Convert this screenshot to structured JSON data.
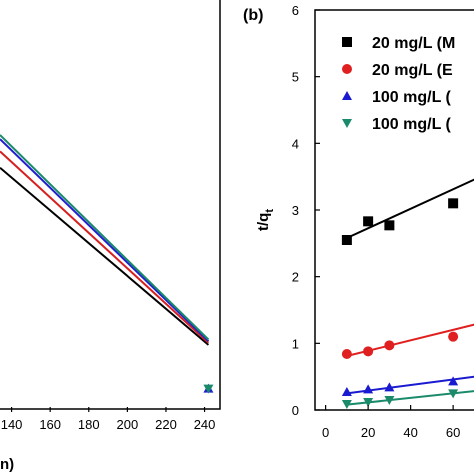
{
  "chart_data": [
    {
      "type": "line",
      "title": "",
      "xlabel": "n)",
      "ylabel": "",
      "xlim": [
        134,
        248
      ],
      "ylim": [
        0,
        1
      ],
      "xticks": [
        140,
        160,
        180,
        200,
        220,
        240
      ],
      "xtick_labels": [
        "140",
        "160",
        "180",
        "200",
        "220",
        "240"
      ],
      "grid": false,
      "series": [
        {
          "color": "#000000",
          "x": [
            134,
            242
          ],
          "y": [
            0.585,
            0.152
          ]
        },
        {
          "color": "#d62020",
          "x": [
            134,
            242
          ],
          "y": [
            0.625,
            0.157
          ]
        },
        {
          "color": "#2020d0",
          "x": [
            134,
            242
          ],
          "y": [
            0.655,
            0.161
          ]
        },
        {
          "color": "#1a8a6a",
          "x": [
            134,
            242
          ],
          "y": [
            0.665,
            0.165
          ]
        }
      ],
      "points": [
        {
          "color": "#2020d0",
          "marker": "triangle-up",
          "x": 242,
          "y": 0.045
        },
        {
          "color": "#1a8a6a",
          "marker": "triangle-down",
          "x": 242,
          "y": 0.045
        }
      ]
    },
    {
      "type": "scatter",
      "panel_label": "(b)",
      "title": "",
      "xlabel": "",
      "ylabel": "t/q",
      "ylabel_sub": "t",
      "xlim": [
        -5,
        75
      ],
      "ylim": [
        0,
        6
      ],
      "xticks": [
        0,
        20,
        40,
        60
      ],
      "xtick_labels": [
        "0",
        "20",
        "40",
        "60"
      ],
      "yticks": [
        0,
        1,
        2,
        3,
        4,
        5,
        6
      ],
      "ytick_labels": [
        "0",
        "1",
        "2",
        "3",
        "4",
        "5",
        "6"
      ],
      "grid": false,
      "legend": {
        "placement": "top-right",
        "entries": [
          "20 mg/L (M",
          "20 mg/L (E",
          "100 mg/L (",
          "100 mg/L ("
        ]
      },
      "series": [
        {
          "name": "20 mg/L (M",
          "marker": "square",
          "color": "#000000",
          "x": [
            10,
            20,
            30,
            60
          ],
          "y": [
            2.55,
            2.83,
            2.77,
            3.1
          ],
          "fit": {
            "x": [
              10,
              75
            ],
            "y": [
              2.58,
              3.53
            ]
          }
        },
        {
          "name": "20 mg/L (E",
          "marker": "circle",
          "color": "#e02020",
          "x": [
            10,
            20,
            30,
            60
          ],
          "y": [
            0.84,
            0.88,
            0.97,
            1.1
          ],
          "fit": {
            "x": [
              10,
              75
            ],
            "y": [
              0.81,
              1.32
            ]
          }
        },
        {
          "name": "100 mg/L (",
          "marker": "triangle-up",
          "color": "#1a1ad0",
          "x": [
            10,
            20,
            30,
            60
          ],
          "y": [
            0.27,
            0.31,
            0.34,
            0.43
          ],
          "fit": {
            "x": [
              10,
              75
            ],
            "y": [
              0.25,
              0.52
            ]
          }
        },
        {
          "name": "100 mg/L (",
          "marker": "triangle-down",
          "color": "#1a8a6a",
          "x": [
            10,
            20,
            30,
            60
          ],
          "y": [
            0.09,
            0.12,
            0.15,
            0.25
          ],
          "fit": {
            "x": [
              10,
              75
            ],
            "y": [
              0.08,
              0.3
            ]
          }
        }
      ]
    }
  ]
}
